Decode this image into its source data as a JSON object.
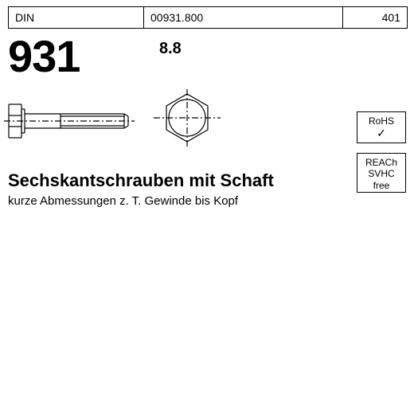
{
  "header": {
    "col1": "DIN",
    "col2": "00931.800",
    "col3": "401",
    "border_color": "#000000",
    "font_size": 14
  },
  "din_number": {
    "text": "931",
    "font_size": 56,
    "font_weight": 900,
    "color": "#000000"
  },
  "grade": {
    "text": "8.8",
    "font_size": 20,
    "font_weight": 700
  },
  "title": {
    "main": "Sechskantschrauben mit Schaft",
    "sub": "kurze Abmessungen z. T. Gewinde bis Kopf",
    "main_font_size": 22,
    "sub_font_size": 15
  },
  "badges": {
    "rohs": {
      "line1": "RoHS",
      "check": "✓"
    },
    "reach": {
      "line1": "REACh",
      "line2": "SVHC",
      "line3": "free"
    },
    "border_color": "#000000",
    "font_size": 12
  },
  "diagram": {
    "type": "infographic",
    "background_color": "#ffffff",
    "stroke_color": "#000000",
    "stroke_width": 1.2,
    "bolt_side": {
      "head_width": 16,
      "head_height": 42,
      "washer_width": 4,
      "shank_length": 45,
      "thread_length": 85,
      "shaft_height": 18,
      "chamfer": 5
    },
    "hex_front": {
      "outer_radius": 30,
      "inner_radius": 23,
      "centerline_extend": 12
    }
  }
}
